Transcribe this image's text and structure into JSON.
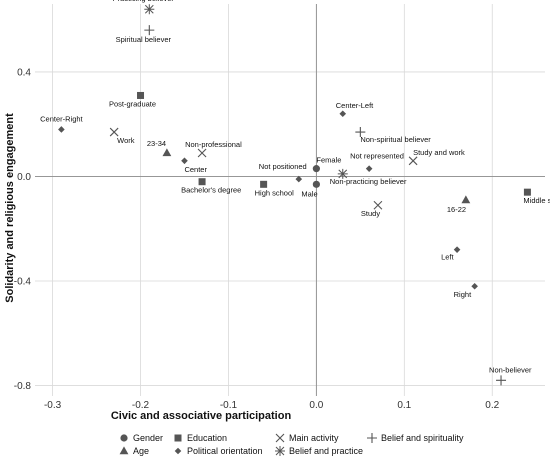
{
  "chart_data": {
    "type": "scatter",
    "title": "",
    "xlabel": "Civic and associative participation",
    "ylabel": "Solidarity and religious engagement",
    "xlim": [
      -0.32,
      0.26
    ],
    "ylim": [
      -0.84,
      0.66
    ],
    "xticks": [
      -0.3,
      -0.2,
      -0.1,
      0.0,
      0.1,
      0.2
    ],
    "xtick_labels": [
      "-0.3",
      "-0.2",
      "-0.1",
      "0.0",
      "0.1",
      "0.2"
    ],
    "yticks": [
      -0.8,
      -0.4,
      0.0,
      0.4
    ],
    "ytick_labels": [
      "-0.8",
      "-0.4",
      "0.0",
      "0.4"
    ],
    "grid": true,
    "reference_lines": {
      "x": 0,
      "y": 0
    },
    "legend_position": "bottom",
    "series": [
      {
        "name": "Gender",
        "marker": "circle",
        "points": [
          {
            "label": "Female",
            "x": 0.0,
            "y": 0.03
          },
          {
            "label": "Male",
            "x": 0.0,
            "y": -0.03
          }
        ]
      },
      {
        "name": "Age",
        "marker": "triangle",
        "points": [
          {
            "label": "23-34",
            "x": -0.17,
            "y": 0.09
          },
          {
            "label": "16-22",
            "x": 0.17,
            "y": -0.09
          }
        ]
      },
      {
        "name": "Education",
        "marker": "square",
        "points": [
          {
            "label": "Post-graduate",
            "x": -0.2,
            "y": 0.31
          },
          {
            "label": "Bachelor's degree",
            "x": -0.13,
            "y": -0.02
          },
          {
            "label": "High school",
            "x": -0.06,
            "y": -0.03
          },
          {
            "label": "Middle school",
            "x": 0.24,
            "y": -0.06
          }
        ]
      },
      {
        "name": "Political orientation",
        "marker": "diamond",
        "points": [
          {
            "label": "Center-Right",
            "x": -0.29,
            "y": 0.18
          },
          {
            "label": "Center",
            "x": -0.15,
            "y": 0.06
          },
          {
            "label": "Not positioned",
            "x": -0.02,
            "y": -0.01
          },
          {
            "label": "Center-Left",
            "x": 0.03,
            "y": 0.24
          },
          {
            "label": "Not represented",
            "x": 0.06,
            "y": 0.03
          },
          {
            "label": "Left",
            "x": 0.16,
            "y": -0.28
          },
          {
            "label": "Right",
            "x": 0.18,
            "y": -0.42
          }
        ]
      },
      {
        "name": "Main activity",
        "marker": "x",
        "points": [
          {
            "label": "Work",
            "x": -0.23,
            "y": 0.17
          },
          {
            "label": "Non-professional",
            "x": -0.13,
            "y": 0.09
          },
          {
            "label": "Study and work",
            "x": 0.11,
            "y": 0.06
          },
          {
            "label": "Study",
            "x": 0.07,
            "y": -0.11
          }
        ]
      },
      {
        "name": "Belief and practice",
        "marker": "asterisk",
        "points": [
          {
            "label": "Practicing believer",
            "x": -0.19,
            "y": 0.64
          },
          {
            "label": "Non-practicing believer",
            "x": 0.03,
            "y": 0.01
          }
        ]
      },
      {
        "name": "Belief and spirituality",
        "marker": "plus",
        "points": [
          {
            "label": "Spiritual believer",
            "x": -0.19,
            "y": 0.56
          },
          {
            "label": "Non-spiritual believer",
            "x": 0.05,
            "y": 0.17
          },
          {
            "label": "Non-believer",
            "x": 0.21,
            "y": -0.78
          }
        ]
      }
    ]
  }
}
